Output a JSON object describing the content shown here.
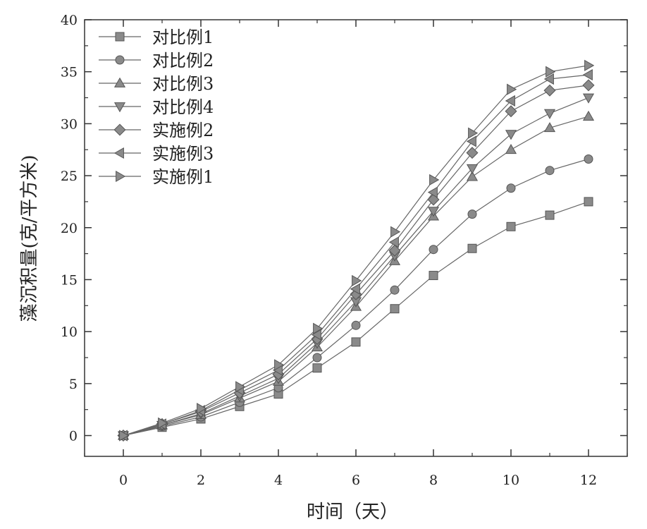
{
  "chart_data": {
    "type": "line",
    "xlabel": "时间（天）",
    "ylabel": "藻沉积量(克/平方米)",
    "xlim": [
      -1,
      13
    ],
    "ylim": [
      -2,
      40
    ],
    "xticks": [
      0,
      2,
      4,
      6,
      8,
      10,
      12
    ],
    "yticks": [
      0,
      5,
      10,
      15,
      20,
      25,
      30,
      35,
      40
    ],
    "x": [
      0,
      1,
      2,
      3,
      4,
      5,
      6,
      7,
      8,
      9,
      10,
      11,
      12
    ],
    "legend_position": "top-left",
    "grid": false,
    "series": [
      {
        "name": "对比例1",
        "marker": "square",
        "values": [
          0,
          0.8,
          1.6,
          2.8,
          4.0,
          6.5,
          9.0,
          12.2,
          15.4,
          18.0,
          20.1,
          21.2,
          22.5
        ]
      },
      {
        "name": "对比例2",
        "marker": "circle",
        "values": [
          0,
          0.9,
          1.8,
          3.2,
          4.6,
          7.5,
          10.6,
          14.0,
          17.9,
          21.3,
          23.8,
          25.5,
          26.6
        ]
      },
      {
        "name": "对比例3",
        "marker": "triangle-up",
        "values": [
          0,
          1.0,
          2.0,
          3.6,
          5.2,
          8.5,
          12.4,
          16.8,
          21.1,
          24.9,
          27.5,
          29.6,
          30.7
        ]
      },
      {
        "name": "对比例4",
        "marker": "triangle-down",
        "values": [
          0,
          1.0,
          2.1,
          3.8,
          5.5,
          8.9,
          12.9,
          17.3,
          21.6,
          25.7,
          29.0,
          31.0,
          32.5
        ]
      },
      {
        "name": "实施例2",
        "marker": "diamond",
        "values": [
          0,
          1.1,
          2.3,
          4.1,
          5.9,
          9.3,
          13.6,
          17.8,
          22.7,
          27.2,
          31.2,
          33.2,
          33.7
        ]
      },
      {
        "name": "实施例3",
        "marker": "triangle-left",
        "values": [
          0,
          1.1,
          2.4,
          4.4,
          6.3,
          9.7,
          14.1,
          18.6,
          23.4,
          28.3,
          32.2,
          34.3,
          34.7
        ]
      },
      {
        "name": "实施例1",
        "marker": "triangle-right",
        "values": [
          0,
          1.2,
          2.6,
          4.7,
          6.8,
          10.3,
          14.9,
          19.6,
          24.6,
          29.1,
          33.3,
          35.0,
          35.6
        ]
      }
    ]
  }
}
